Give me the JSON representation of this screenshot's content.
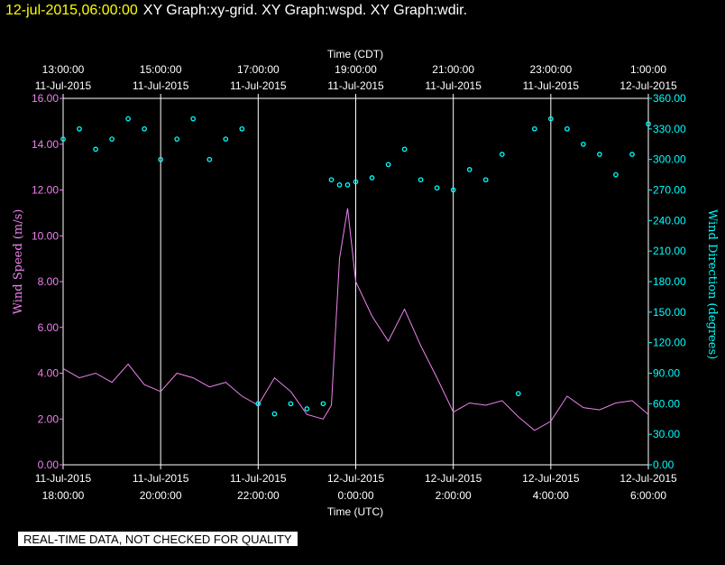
{
  "header": {
    "datetime": "12-jul-2015,06:00:00",
    "graphs": "XY Graph:xy-grid.  XY Graph:wspd.  XY Graph:wdir."
  },
  "footer": {
    "quality_notice": "REAL-TIME DATA, NOT CHECKED FOR QUALITY"
  },
  "colors": {
    "background": "#000000",
    "grid": "#ffffff",
    "wind_speed": "#ee82ee",
    "wind_direction": "#00ffff"
  },
  "chart_data": {
    "type": "line",
    "top_axis": {
      "label": "Time (CDT)",
      "ticks": [
        {
          "time": "13:00:00",
          "date": "11-Jul-2015"
        },
        {
          "time": "15:00:00",
          "date": "11-Jul-2015"
        },
        {
          "time": "17:00:00",
          "date": "11-Jul-2015"
        },
        {
          "time": "19:00:00",
          "date": "11-Jul-2015"
        },
        {
          "time": "21:00:00",
          "date": "11-Jul-2015"
        },
        {
          "time": "23:00:00",
          "date": "11-Jul-2015"
        },
        {
          "time": "1:00:00",
          "date": "12-Jul-2015"
        }
      ]
    },
    "bottom_axis": {
      "label": "Time (UTC)",
      "ticks": [
        {
          "date": "11-Jul-2015",
          "time": "18:00:00"
        },
        {
          "date": "11-Jul-2015",
          "time": "20:00:00"
        },
        {
          "date": "11-Jul-2015",
          "time": "22:00:00"
        },
        {
          "date": "12-Jul-2015",
          "time": "0:00:00"
        },
        {
          "date": "12-Jul-2015",
          "time": "2:00:00"
        },
        {
          "date": "12-Jul-2015",
          "time": "4:00:00"
        },
        {
          "date": "12-Jul-2015",
          "time": "6:00:00"
        }
      ]
    },
    "x_range_utc": [
      "2015-07-11T18:00:00",
      "2015-07-12T06:00:00"
    ],
    "grid": "vertical",
    "left_axis": {
      "label": "Wind Speed (m/s)",
      "range": [
        0,
        16
      ],
      "ticks": [
        "0.00",
        "2.00",
        "4.00",
        "6.00",
        "8.00",
        "10.00",
        "12.00",
        "14.00",
        "16.00"
      ]
    },
    "right_axis": {
      "label": "Wind Direction (degrees)",
      "range": [
        0,
        360
      ],
      "ticks": [
        "0.00",
        "30.00",
        "60.00",
        "90.00",
        "120.00",
        "150.00",
        "180.00",
        "210.00",
        "240.00",
        "270.00",
        "300.00",
        "330.00",
        "360.00"
      ]
    },
    "series": [
      {
        "axis": "left",
        "style": "line",
        "x_utc": [
          "2015-07-11T18:00",
          "2015-07-11T18:20",
          "2015-07-11T18:40",
          "2015-07-11T19:00",
          "2015-07-11T19:20",
          "2015-07-11T19:40",
          "2015-07-11T20:00",
          "2015-07-11T20:20",
          "2015-07-11T20:40",
          "2015-07-11T21:00",
          "2015-07-11T21:20",
          "2015-07-11T21:40",
          "2015-07-11T22:00",
          "2015-07-11T22:20",
          "2015-07-11T22:40",
          "2015-07-11T23:00",
          "2015-07-11T23:20",
          "2015-07-11T23:30",
          "2015-07-11T23:40",
          "2015-07-11T23:50",
          "2015-07-12T00:00",
          "2015-07-12T00:20",
          "2015-07-12T00:40",
          "2015-07-12T01:00",
          "2015-07-12T01:20",
          "2015-07-12T01:40",
          "2015-07-12T02:00",
          "2015-07-12T02:20",
          "2015-07-12T02:40",
          "2015-07-12T03:00",
          "2015-07-12T03:20",
          "2015-07-12T03:40",
          "2015-07-12T04:00",
          "2015-07-12T04:20",
          "2015-07-12T04:40",
          "2015-07-12T05:00",
          "2015-07-12T05:20",
          "2015-07-12T05:40",
          "2015-07-12T06:00"
        ],
        "y": [
          4.2,
          3.8,
          4.0,
          3.6,
          4.4,
          3.5,
          3.2,
          4.0,
          3.8,
          3.4,
          3.6,
          3.0,
          2.6,
          3.8,
          3.2,
          2.2,
          2.0,
          2.6,
          9.0,
          11.2,
          8.0,
          6.5,
          5.4,
          6.8,
          5.2,
          3.8,
          2.3,
          2.7,
          2.6,
          2.8,
          2.1,
          1.5,
          1.9,
          3.0,
          2.5,
          2.4,
          2.7,
          2.8,
          2.2
        ]
      },
      {
        "axis": "right",
        "style": "points",
        "x_utc": [
          "2015-07-11T18:00",
          "2015-07-11T18:20",
          "2015-07-11T18:40",
          "2015-07-11T19:00",
          "2015-07-11T19:20",
          "2015-07-11T19:40",
          "2015-07-11T20:00",
          "2015-07-11T20:20",
          "2015-07-11T20:40",
          "2015-07-11T21:00",
          "2015-07-11T21:20",
          "2015-07-11T21:40",
          "2015-07-11T22:00",
          "2015-07-11T22:20",
          "2015-07-11T22:40",
          "2015-07-11T23:00",
          "2015-07-11T23:20",
          "2015-07-11T23:30",
          "2015-07-11T23:40",
          "2015-07-11T23:50",
          "2015-07-12T00:00",
          "2015-07-12T00:20",
          "2015-07-12T00:40",
          "2015-07-12T01:00",
          "2015-07-12T01:20",
          "2015-07-12T01:40",
          "2015-07-12T02:00",
          "2015-07-12T02:20",
          "2015-07-12T02:40",
          "2015-07-12T03:00",
          "2015-07-12T03:20",
          "2015-07-12T03:40",
          "2015-07-12T04:00",
          "2015-07-12T04:20",
          "2015-07-12T04:40",
          "2015-07-12T05:00",
          "2015-07-12T05:20",
          "2015-07-12T05:40",
          "2015-07-12T06:00"
        ],
        "y": [
          320,
          330,
          310,
          320,
          340,
          330,
          300,
          320,
          340,
          300,
          320,
          330,
          60,
          50,
          60,
          55,
          60,
          280,
          275,
          275,
          278,
          282,
          295,
          310,
          280,
          272,
          270,
          290,
          280,
          305,
          70,
          330,
          340,
          330,
          315,
          305,
          285,
          305,
          335
        ]
      }
    ]
  }
}
